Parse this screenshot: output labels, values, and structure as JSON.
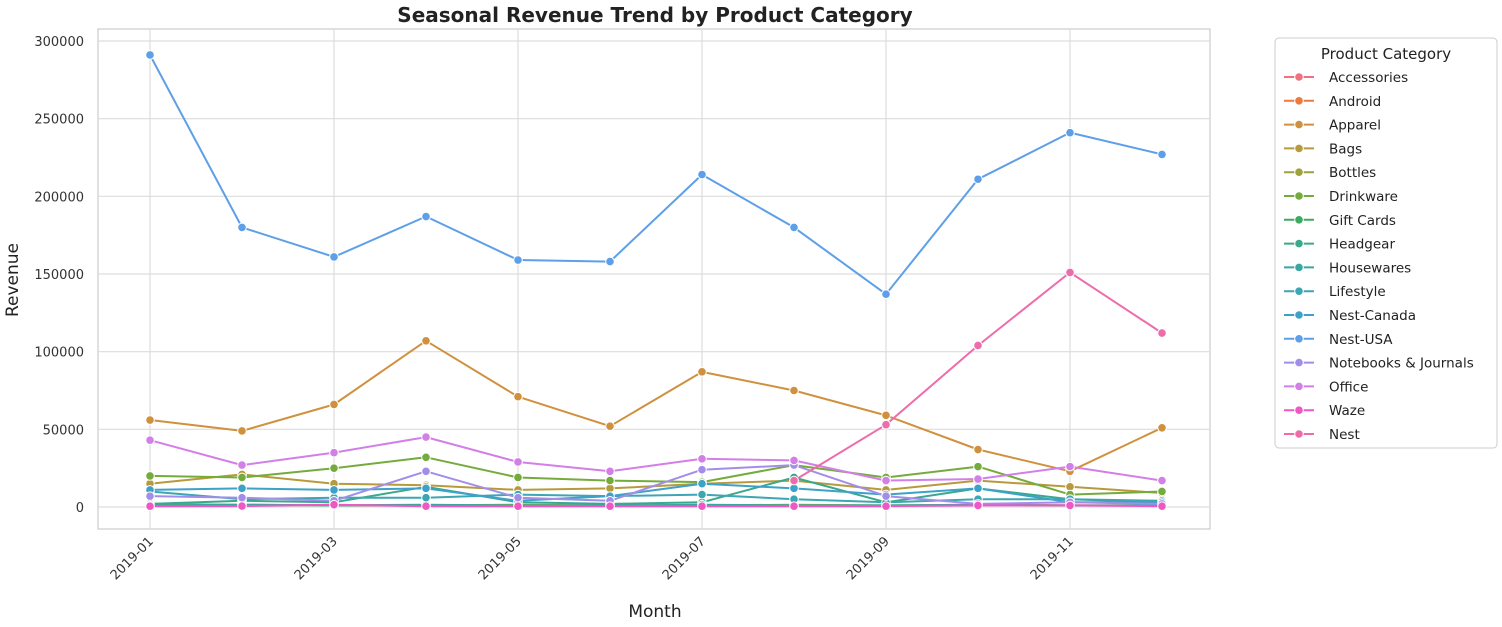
{
  "chart_data": {
    "type": "line",
    "title": "Seasonal Revenue Trend by Product Category",
    "xlabel": "Month",
    "ylabel": "Revenue",
    "x": [
      "2019-01",
      "2019-02",
      "2019-03",
      "2019-04",
      "2019-05",
      "2019-06",
      "2019-07",
      "2019-08",
      "2019-09",
      "2019-10",
      "2019-11",
      "2019-12"
    ],
    "x_tick_labels": [
      "2019-01",
      "2019-03",
      "2019-05",
      "2019-07",
      "2019-09",
      "2019-11"
    ],
    "x_tick_months": [
      "2019-01",
      "2019-03",
      "2019-05",
      "2019-07",
      "2019-09",
      "2019-11"
    ],
    "y_ticks": [
      0,
      50000,
      100000,
      150000,
      200000,
      250000,
      300000
    ],
    "ylim": [
      -15000,
      305000
    ],
    "grid": true,
    "legend_title": "Product Category",
    "legend_placement": "outside-right",
    "series": [
      {
        "name": "Accessories",
        "color": "#f0727e",
        "values": [
          null,
          null,
          null,
          null,
          null,
          null,
          null,
          null,
          null,
          null,
          null,
          null
        ]
      },
      {
        "name": "Android",
        "color": "#ec7a3d",
        "values": [
          null,
          null,
          null,
          null,
          null,
          null,
          null,
          null,
          null,
          null,
          null,
          null
        ]
      },
      {
        "name": "Apparel",
        "color": "#d0913e",
        "values": [
          56000,
          49000,
          66000,
          107000,
          71000,
          52000,
          87000,
          75000,
          59000,
          37000,
          23000,
          51000
        ]
      },
      {
        "name": "Bags",
        "color": "#b79a3c",
        "values": [
          15000,
          21000,
          15000,
          14000,
          11000,
          12000,
          15000,
          17000,
          11000,
          17000,
          13000,
          9000
        ]
      },
      {
        "name": "Bottles",
        "color": "#9ca33c",
        "values": [
          2000,
          1500,
          1000,
          1000,
          1500,
          1000,
          1000,
          1500,
          1000,
          1500,
          1000,
          1000
        ]
      },
      {
        "name": "Drinkware",
        "color": "#75ab3d",
        "values": [
          20000,
          19000,
          25000,
          32000,
          19000,
          17000,
          16000,
          27000,
          19000,
          26000,
          8000,
          10000
        ]
      },
      {
        "name": "Gift Cards",
        "color": "#3daa60",
        "values": [
          null,
          null,
          null,
          null,
          null,
          null,
          null,
          null,
          null,
          null,
          null,
          null
        ]
      },
      {
        "name": "Headgear",
        "color": "#3aa88b",
        "values": [
          2000,
          4000,
          3000,
          13000,
          3000,
          2000,
          3000,
          19000,
          3000,
          12000,
          5000,
          3000
        ]
      },
      {
        "name": "Housewares",
        "color": "#3aa6a0",
        "values": [
          1000,
          1500,
          1000,
          1500,
          1000,
          1000,
          1500,
          1000,
          1000,
          1500,
          1000,
          1000
        ]
      },
      {
        "name": "Lifestyle",
        "color": "#3ca6b3",
        "values": [
          10000,
          5000,
          6000,
          6000,
          8000,
          7000,
          8000,
          5000,
          3000,
          5000,
          5000,
          4000
        ]
      },
      {
        "name": "Nest-Canada",
        "color": "#3da1c8",
        "values": [
          11000,
          12000,
          11000,
          12000,
          4000,
          7000,
          15000,
          12000,
          8000,
          12000,
          3000,
          3000
        ]
      },
      {
        "name": "Nest-USA",
        "color": "#5d9fe8",
        "values": [
          291000,
          180000,
          161000,
          187000,
          159000,
          158000,
          214000,
          180000,
          137000,
          211000,
          241000,
          227000
        ]
      },
      {
        "name": "Notebooks & Journals",
        "color": "#a28ee9",
        "values": [
          7000,
          6000,
          4000,
          23000,
          6000,
          4000,
          24000,
          27000,
          7000,
          2000,
          3000,
          2000
        ]
      },
      {
        "name": "Office",
        "color": "#d27fe8",
        "values": [
          43000,
          27000,
          35000,
          45000,
          29000,
          23000,
          31000,
          30000,
          17000,
          18000,
          26000,
          17000
        ]
      },
      {
        "name": "Waze",
        "color": "#ef58c4",
        "values": [
          500,
          600,
          1500,
          500,
          500,
          500,
          500,
          500,
          500,
          1000,
          1000,
          500
        ]
      },
      {
        "name": "Nest",
        "color": "#ee6bac",
        "values": [
          null,
          null,
          null,
          null,
          null,
          null,
          null,
          17000,
          53000,
          104000,
          151000,
          112000
        ]
      }
    ]
  }
}
